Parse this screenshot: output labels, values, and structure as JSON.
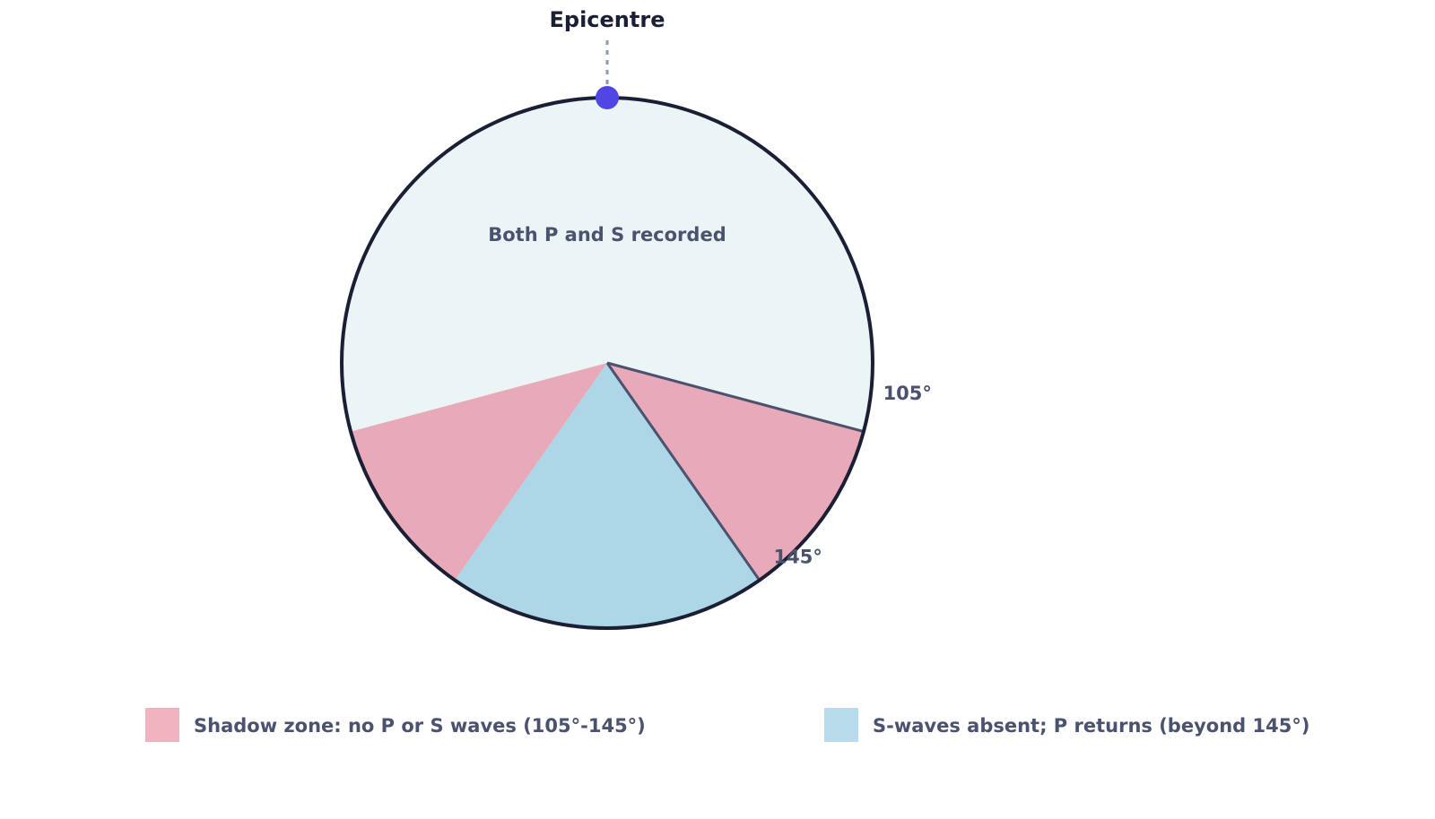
{
  "title": "Epicentre",
  "zone_label": "Both P and S recorded",
  "angle_labels": [
    {
      "value": 105,
      "label": "105°"
    },
    {
      "value": 145,
      "label": "145°"
    }
  ],
  "legend": [
    "Shadow zone: no P or S waves (105°-145°)",
    "S-waves absent; P returns (beyond 145°)"
  ]
}
